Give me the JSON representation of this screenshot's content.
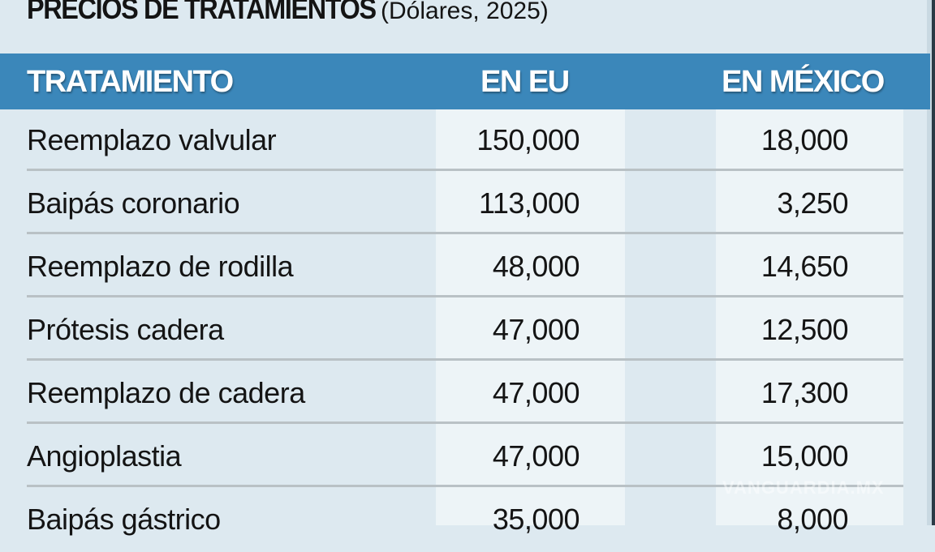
{
  "title": "PRECIOS DE TRATAMIENTOS",
  "subtitle": "(Dólares, 2025)",
  "watermark": "VANGUARDIA.MX",
  "colors": {
    "header": "#3b87ba",
    "background": "#dde9f0",
    "column_panel": "#edf4f7"
  },
  "chart_data": {
    "type": "table",
    "title": "PRECIOS DE TRATAMIENTOS",
    "subtitle": "(Dólares, 2025)",
    "columns": [
      "TRATAMIENTO",
      "EN EU",
      "EN MÉXICO"
    ],
    "rows": [
      [
        "Reemplazo valvular",
        "150,000",
        "18,000"
      ],
      [
        "Baipás coronario",
        "113,000",
        "3,250"
      ],
      [
        "Reemplazo de rodilla",
        "48,000",
        "14,650"
      ],
      [
        "Prótesis cadera",
        "47,000",
        "12,500"
      ],
      [
        "Reemplazo de cadera",
        "47,000",
        "17,300"
      ],
      [
        "Angioplastia",
        "47,000",
        "15,000"
      ],
      [
        "Baipás gástrico",
        "35,000",
        "8,000"
      ]
    ]
  }
}
